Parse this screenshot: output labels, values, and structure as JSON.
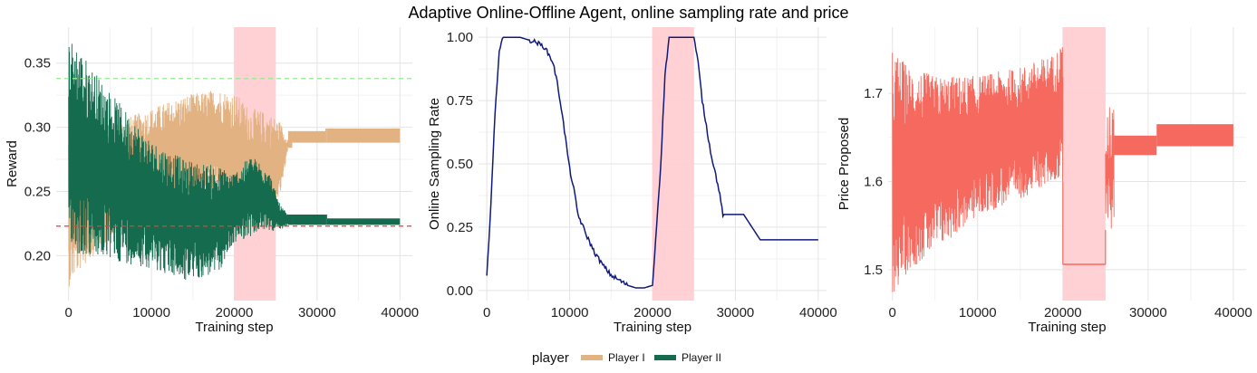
{
  "figure_title": "Adaptive Online-Offline Agent, online sampling rate and price",
  "legend": {
    "title": "player",
    "items": [
      {
        "label": "Player I",
        "color": "#E3B282"
      },
      {
        "label": "Player II",
        "color": "#156B4D"
      }
    ]
  },
  "chart_data": [
    {
      "type": "line",
      "xlabel": "Training step",
      "ylabel": "Reward",
      "xlim": [
        -1500,
        41500
      ],
      "ylim": [
        0.165,
        0.378
      ],
      "xticks": [
        0,
        10000,
        20000,
        30000,
        40000
      ],
      "yticks": [
        0.2,
        0.25,
        0.3,
        0.35
      ],
      "ytick_labels": [
        "0.20",
        "0.25",
        "0.30",
        "0.35"
      ],
      "shaded_region": {
        "x": [
          20000,
          25000
        ],
        "color": "#FFCDD2"
      },
      "reference_lines": [
        {
          "y": 0.338,
          "color": "#90EE90",
          "style": "dashed"
        },
        {
          "y": 0.223,
          "color": "#FF3333",
          "style": "dashed"
        }
      ],
      "grid": true,
      "series": [
        {
          "name": "Player I",
          "color": "#E3B282",
          "band": {
            "x": [
              0,
              1000,
              3000,
              6000,
              10000,
              14000,
              18000,
              20000,
              22000,
              24000,
              25500,
              26500,
              27000,
              31000,
              31200,
              40000
            ],
            "upper": [
              0.3,
              0.31,
              0.29,
              0.305,
              0.315,
              0.325,
              0.33,
              0.327,
              0.315,
              0.312,
              0.305,
              0.29,
              0.297,
              0.297,
              0.299,
              0.299
            ],
            "lower": [
              0.175,
              0.185,
              0.2,
              0.22,
              0.24,
              0.245,
              0.25,
              0.23,
              0.22,
              0.22,
              0.245,
              0.284,
              0.288,
              0.288,
              0.288,
              0.288
            ]
          }
        },
        {
          "name": "Player II",
          "color": "#156B4D",
          "band": {
            "x": [
              0,
              1000,
              3000,
              6000,
              10000,
              14000,
              18000,
              20000,
              22000,
              24000,
              25500,
              26500,
              27000,
              31000,
              31200,
              40000
            ],
            "upper": [
              0.37,
              0.365,
              0.345,
              0.32,
              0.29,
              0.275,
              0.27,
              0.265,
              0.278,
              0.27,
              0.24,
              0.232,
              0.232,
              0.232,
              0.229,
              0.229
            ],
            "lower": [
              0.215,
              0.2,
              0.198,
              0.195,
              0.19,
              0.18,
              0.185,
              0.21,
              0.215,
              0.22,
              0.218,
              0.224,
              0.224,
              0.224,
              0.224,
              0.224
            ]
          }
        }
      ]
    },
    {
      "type": "line",
      "xlabel": "Training step",
      "ylabel": "Online Sampling Rate",
      "xlim": [
        -1000,
        41000
      ],
      "ylim": [
        -0.04,
        1.04
      ],
      "xticks": [
        0,
        10000,
        20000,
        30000,
        40000
      ],
      "yticks": [
        0.0,
        0.25,
        0.5,
        0.75,
        1.0
      ],
      "ytick_labels": [
        "0.00",
        "0.25",
        "0.50",
        "0.75",
        "1.00"
      ],
      "shaded_region": {
        "x": [
          20000,
          25000
        ],
        "color": "#FFCDD2"
      },
      "grid": true,
      "series": [
        {
          "color": "#101A7A",
          "x": [
            0,
            500,
            1000,
            1500,
            2000,
            4000,
            5000,
            6000,
            7000,
            8000,
            8500,
            9000,
            9500,
            10000,
            10500,
            11000,
            12000,
            13000,
            14000,
            15000,
            16000,
            17000,
            18000,
            19000,
            20000,
            21000,
            21500,
            22000,
            22500,
            23000,
            24000,
            25000,
            25500,
            26000,
            27000,
            28000,
            28500,
            31000,
            33000,
            40000
          ],
          "y": [
            0.05,
            0.35,
            0.7,
            0.95,
            1.0,
            1.0,
            0.99,
            0.98,
            0.96,
            0.9,
            0.82,
            0.72,
            0.6,
            0.48,
            0.4,
            0.3,
            0.22,
            0.15,
            0.1,
            0.06,
            0.04,
            0.02,
            0.01,
            0.01,
            0.02,
            0.5,
            0.85,
            1.0,
            1.0,
            1.0,
            1.0,
            1.0,
            0.9,
            0.75,
            0.55,
            0.4,
            0.3,
            0.3,
            0.2,
            0.2
          ]
        }
      ]
    },
    {
      "type": "line",
      "xlabel": "Training step",
      "ylabel": "Price Proposed",
      "xlim": [
        -500,
        41500
      ],
      "ylim": [
        1.465,
        1.775
      ],
      "xticks": [
        0,
        10000,
        20000,
        30000,
        40000
      ],
      "yticks": [
        1.5,
        1.6,
        1.7
      ],
      "ytick_labels": [
        "1.5",
        "1.6",
        "1.7"
      ],
      "shaded_region": {
        "x": [
          20000,
          25000
        ],
        "color": "#FFCDD2"
      },
      "grid": true,
      "series": [
        {
          "color": "#F5695E",
          "band": {
            "x": [
              0,
              2000,
              5000,
              10000,
              15000,
              19000,
              20000
            ],
            "upper": [
              1.75,
              1.73,
              1.72,
              1.72,
              1.73,
              1.745,
              1.76
            ],
            "lower": [
              1.47,
              1.5,
              1.52,
              1.56,
              1.58,
              1.6,
              1.6
            ]
          },
          "flat_segments": [
            {
              "x": [
                20000,
                25000
              ],
              "y": 1.506
            },
            {
              "x": [
                26000,
                31000
              ],
              "y_range": [
                1.63,
                1.652
              ]
            },
            {
              "x": [
                31000,
                40000
              ],
              "y_range": [
                1.64,
                1.665
              ]
            }
          ],
          "transition": {
            "x": [
              25000,
              26000
            ],
            "y_range": [
              1.545,
              1.685
            ]
          }
        }
      ]
    }
  ]
}
